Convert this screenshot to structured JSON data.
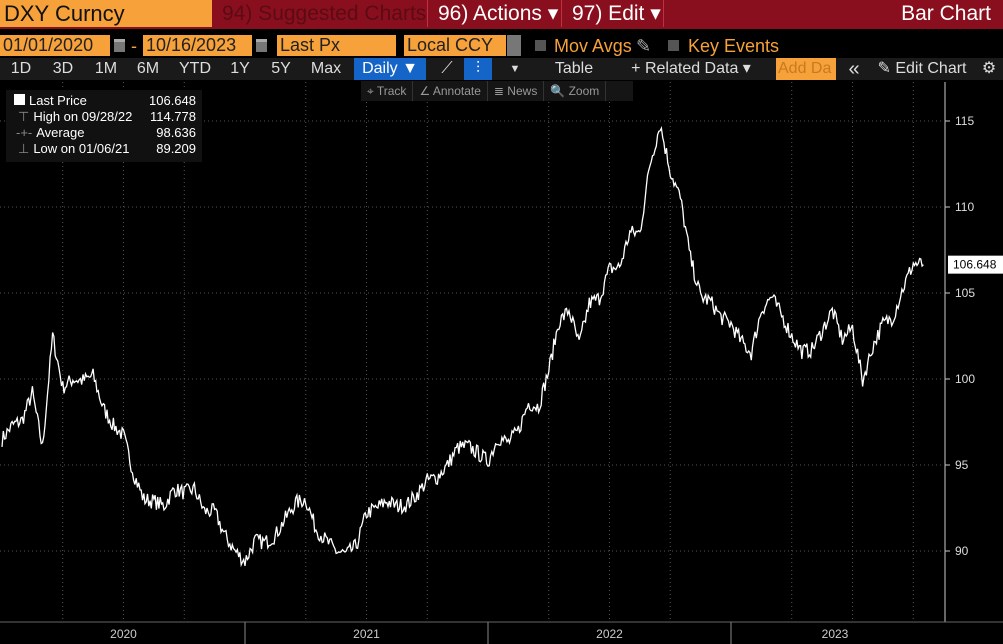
{
  "header": {
    "ticker": "DXY Curncy",
    "suggested": "94) Suggested Charts",
    "actions": "96) Actions ▾",
    "edit": "97) Edit ▾",
    "chart_type": "Bar Chart"
  },
  "controls": {
    "start_date": "01/01/2020",
    "dash": "-",
    "end_date": "10/16/2023",
    "field": "Last Px",
    "currency": "Local CCY",
    "mov_avgs": "Mov Avgs",
    "key_events": "Key Events"
  },
  "periods": [
    "1D",
    "3D",
    "1M",
    "6M",
    "YTD",
    "1Y",
    "5Y",
    "Max"
  ],
  "toolbar": {
    "frequency": "Daily ▼",
    "table": "Table",
    "related": "+ Related Data ▾",
    "add_data": "Add Da",
    "collapse": "«",
    "edit_chart": "Edit Chart",
    "settings": "⚙"
  },
  "chart_tools": [
    "⌖ Track",
    "∠ Annotate",
    "≣ News",
    "🔍 Zoom"
  ],
  "legend": [
    {
      "label": "Last Price",
      "value": "106.648"
    },
    {
      "label": "High on 09/28/22",
      "value": "114.778"
    },
    {
      "label": "Average",
      "value": "98.636"
    },
    {
      "label": "Low on 01/06/21",
      "value": "89.209"
    }
  ],
  "colors": {
    "accent": "#f7a13a",
    "header": "#8a0f1e",
    "line": "#ffffff",
    "active": "#1565c8"
  },
  "chart_data": {
    "type": "line",
    "title": "DXY Curncy",
    "series_name": "Last Price",
    "x_start": "2020-01-01",
    "x_step": "half-month",
    "values": [
      96.5,
      97.3,
      97.6,
      99.2,
      96.0,
      102.5,
      99.5,
      100.0,
      99.9,
      100.2,
      98.3,
      97.3,
      96.7,
      94.5,
      93.0,
      92.9,
      92.6,
      93.6,
      93.4,
      93.6,
      92.3,
      92.3,
      90.9,
      90.0,
      89.4,
      90.6,
      90.5,
      90.9,
      91.9,
      92.8,
      93.0,
      91.3,
      90.6,
      90.0,
      89.8,
      90.3,
      92.2,
      92.5,
      92.9,
      92.6,
      92.7,
      93.3,
      94.1,
      94.3,
      95.0,
      96.0,
      96.1,
      95.7,
      95.2,
      96.6,
      96.3,
      97.0,
      98.6,
      98.4,
      100.5,
      103.3,
      104.0,
      102.0,
      104.4,
      104.7,
      106.4,
      106.5,
      108.5,
      108.5,
      112.5,
      114.8,
      112.1,
      110.5,
      107.0,
      104.8,
      104.5,
      103.6,
      103.2,
      102.2,
      101.5,
      104.0,
      104.8,
      103.7,
      102.5,
      101.6,
      101.7,
      102.8,
      104.0,
      102.3,
      103.0,
      99.9,
      101.9,
      103.2,
      103.6,
      105.3,
      106.7,
      106.648
    ],
    "y_ticks": [
      90,
      95,
      100,
      105,
      110,
      115
    ],
    "ylim": [
      86.5,
      117
    ],
    "x_labels": [
      "2020",
      "2021",
      "2022",
      "2023"
    ],
    "last_label": "106.648"
  }
}
